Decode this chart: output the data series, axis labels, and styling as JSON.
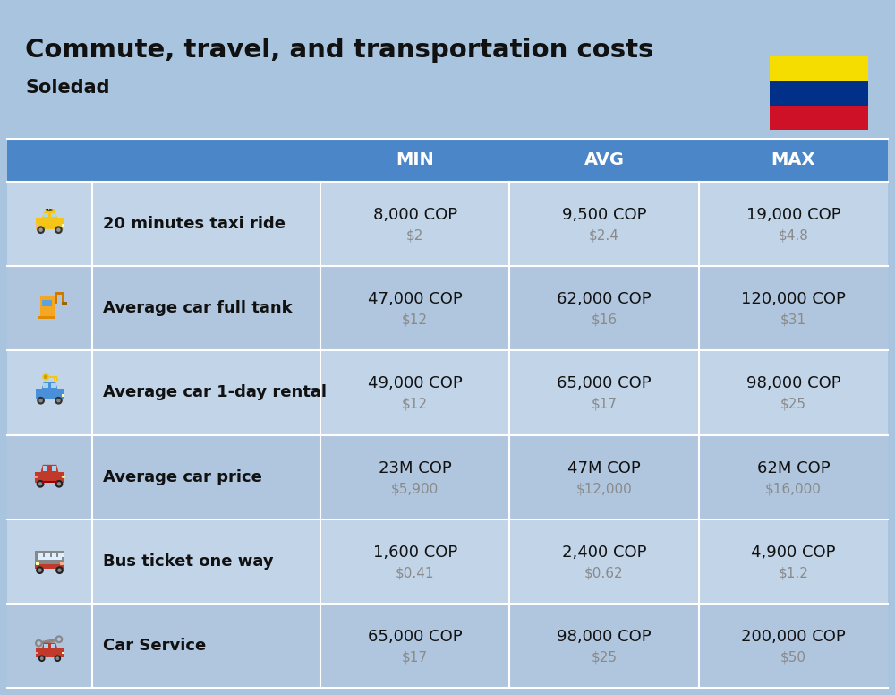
{
  "title": "Commute, travel, and transportation costs",
  "subtitle": "Soledad",
  "background_color": "#a8c4df",
  "header_bg_color": "#4a86c8",
  "header_text_color": "#ffffff",
  "row_alt_colors": [
    "#c2d4e8",
    "#b0c6de"
  ],
  "headers": [
    "MIN",
    "AVG",
    "MAX"
  ],
  "rows": [
    {
      "label": "20 minutes taxi ride",
      "min_cop": "8,000 COP",
      "min_usd": "$2",
      "avg_cop": "9,500 COP",
      "avg_usd": "$2.4",
      "max_cop": "19,000 COP",
      "max_usd": "$4.8"
    },
    {
      "label": "Average car full tank",
      "min_cop": "47,000 COP",
      "min_usd": "$12",
      "avg_cop": "62,000 COP",
      "avg_usd": "$16",
      "max_cop": "120,000 COP",
      "max_usd": "$31"
    },
    {
      "label": "Average car 1-day rental",
      "min_cop": "49,000 COP",
      "min_usd": "$12",
      "avg_cop": "65,000 COP",
      "avg_usd": "$17",
      "max_cop": "98,000 COP",
      "max_usd": "$25"
    },
    {
      "label": "Average car price",
      "min_cop": "23M COP",
      "min_usd": "$5,900",
      "avg_cop": "47M COP",
      "avg_usd": "$12,000",
      "max_cop": "62M COP",
      "max_usd": "$16,000"
    },
    {
      "label": "Bus ticket one way",
      "min_cop": "1,600 COP",
      "min_usd": "$0.41",
      "avg_cop": "2,400 COP",
      "avg_usd": "$0.62",
      "max_cop": "4,900 COP",
      "max_usd": "$1.2"
    },
    {
      "label": "Car Service",
      "min_cop": "65,000 COP",
      "min_usd": "$17",
      "avg_cop": "98,000 COP",
      "avg_usd": "$25",
      "max_cop": "200,000 COP",
      "max_usd": "$50"
    }
  ],
  "flag_colors": [
    "#f5dd00",
    "#003087",
    "#ce1126"
  ],
  "title_fontsize": 21,
  "subtitle_fontsize": 15,
  "label_fontsize": 13,
  "value_fontsize": 13,
  "usd_fontsize": 11,
  "header_fontsize": 14
}
